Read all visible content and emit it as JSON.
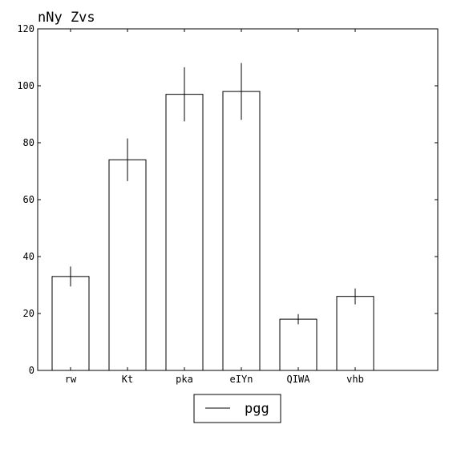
{
  "chart_data": {
    "type": "bar",
    "title": "nNy Zvs",
    "categories": [
      "rw",
      "Kt",
      "pka",
      "eIYn",
      "QIWA",
      "vhb"
    ],
    "series": [
      {
        "name": "pgg",
        "values": [
          33,
          74,
          97,
          98,
          18,
          26
        ],
        "errors": [
          3.5,
          7.5,
          9.5,
          10,
          1.8,
          2.8
        ]
      }
    ],
    "ylim": [
      0,
      120
    ],
    "yticks": [
      0,
      20,
      40,
      60,
      80,
      100,
      120
    ],
    "xlabel": "",
    "ylabel": "",
    "grid": false,
    "legend_position": "bottom-center",
    "colors": {
      "bar_fill": "#ffffff",
      "bar_edge": "#000000",
      "error": "#000000",
      "axis": "#000000"
    }
  }
}
